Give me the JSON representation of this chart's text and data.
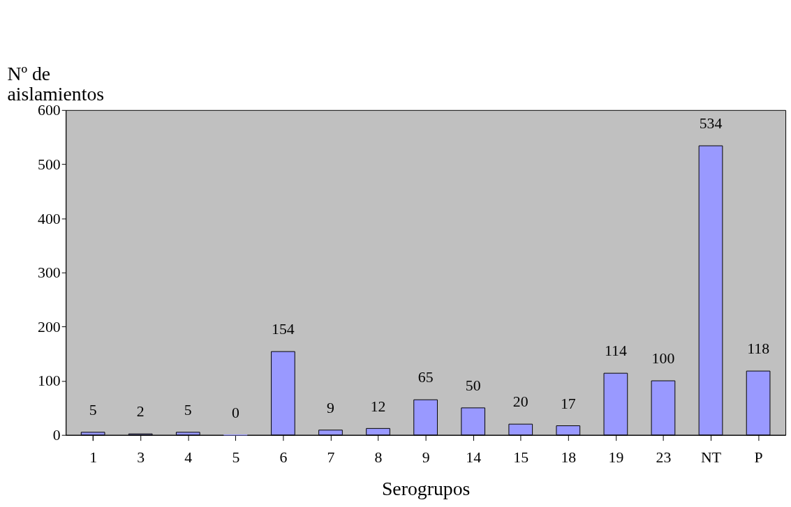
{
  "chart_data": {
    "type": "bar",
    "xlabel": "Serogrupos",
    "ylabel": "Nº de aislamientos",
    "categories": [
      "1",
      "3",
      "4",
      "5",
      "6",
      "7",
      "8",
      "9",
      "14",
      "15",
      "18",
      "19",
      "23",
      "NT",
      "P"
    ],
    "values": [
      5,
      2,
      5,
      0,
      154,
      9,
      12,
      65,
      50,
      20,
      17,
      114,
      100,
      534,
      118
    ],
    "color": "#9999ff",
    "ylim": [
      0,
      600
    ],
    "yticks": [
      0,
      100,
      200,
      300,
      400,
      500,
      600
    ],
    "grid": false,
    "data_labels": true
  }
}
